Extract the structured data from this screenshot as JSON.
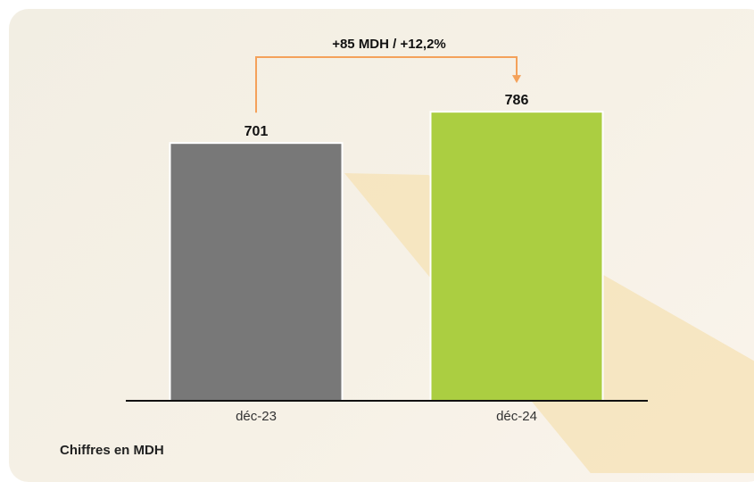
{
  "chart_data": {
    "type": "bar",
    "categories": [
      "déc-23",
      "déc-24"
    ],
    "values": [
      701,
      786
    ],
    "value_labels": [
      "701",
      "786"
    ],
    "delta_label": "+85 MDH / +12,2%",
    "bar_colors": [
      "#787878",
      "#abce41"
    ],
    "arrow_color": "#f4a15a",
    "title": "",
    "xlabel": "",
    "ylabel": "",
    "grid": false,
    "legend": "none"
  },
  "footnote": "Chiffres en MDH"
}
